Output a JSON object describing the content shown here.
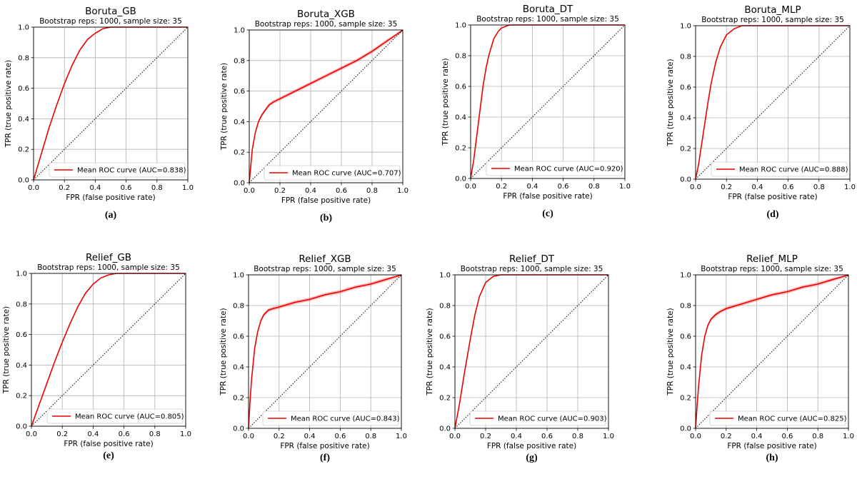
{
  "chart_data": [
    {
      "type": "line",
      "title": "Boruta_GB",
      "subtitle": "Bootstrap reps: 1000, sample size: 35",
      "xlabel": "FPR (false positive rate)",
      "ylabel": "TPR (true positive rate)",
      "xlim": [
        0,
        1
      ],
      "ylim": [
        0,
        1
      ],
      "xticks": [
        "0.0",
        "0.2",
        "0.4",
        "0.6",
        "0.8",
        "1.0"
      ],
      "yticks": [
        "0.0",
        "0.2",
        "0.4",
        "0.6",
        "0.8",
        "1.0"
      ],
      "grid": true,
      "legend_position": "lower-right",
      "series": [
        {
          "name": "Mean ROC curve (AUC=0.838)",
          "color": "#ee0000",
          "x": [
            0,
            0.05,
            0.1,
            0.15,
            0.2,
            0.25,
            0.3,
            0.35,
            0.4,
            0.45,
            0.5,
            0.6,
            0.8,
            1.0
          ],
          "y": [
            0,
            0.17,
            0.34,
            0.49,
            0.63,
            0.75,
            0.85,
            0.92,
            0.96,
            0.99,
            1,
            1,
            1,
            1
          ]
        },
        {
          "name": "",
          "color": "#000000",
          "dashed": true,
          "x": [
            0,
            1
          ],
          "y": [
            0,
            1
          ]
        }
      ],
      "caption": "(a)"
    },
    {
      "type": "line",
      "title": "Boruta_XGB",
      "subtitle": "Bootstrap reps: 1000, sample size: 35",
      "xlabel": "FPR (false positive rate)",
      "ylabel": "TPR (true positive rate)",
      "xlim": [
        0,
        1
      ],
      "ylim": [
        0,
        1
      ],
      "xticks": [
        "0.0",
        "0.2",
        "0.4",
        "0.6",
        "0.8",
        "1.0"
      ],
      "yticks": [
        "0.0",
        "0.2",
        "0.4",
        "0.6",
        "0.8",
        "1.0"
      ],
      "grid": true,
      "legend_position": "lower-right",
      "series": [
        {
          "name": "Mean ROC curve (AUC=0.707)",
          "color": "#ee0000",
          "band": 0.012,
          "x": [
            0,
            0.02,
            0.04,
            0.06,
            0.08,
            0.1,
            0.13,
            0.16,
            0.2,
            0.3,
            0.4,
            0.5,
            0.6,
            0.7,
            0.8,
            0.9,
            1.0
          ],
          "y": [
            0,
            0.22,
            0.33,
            0.4,
            0.44,
            0.47,
            0.51,
            0.53,
            0.55,
            0.6,
            0.65,
            0.7,
            0.75,
            0.8,
            0.86,
            0.93,
            1.0
          ]
        },
        {
          "name": "",
          "color": "#000000",
          "dashed": true,
          "x": [
            0,
            1
          ],
          "y": [
            0,
            1
          ]
        }
      ],
      "caption": "(b)"
    },
    {
      "type": "line",
      "title": "Boruta_DT",
      "subtitle": "Bootstrap reps: 1000, sample size: 35",
      "xlabel": "FPR (false positive rate)",
      "ylabel": "TPR (true positive rate)",
      "xlim": [
        0,
        1
      ],
      "ylim": [
        0,
        1
      ],
      "xticks": [
        "0.0",
        "0.2",
        "0.4",
        "0.6",
        "0.8",
        "1.0"
      ],
      "yticks": [
        "0.0",
        "0.2",
        "0.4",
        "0.6",
        "0.8",
        "1.0"
      ],
      "grid": true,
      "legend_position": "lower-right",
      "series": [
        {
          "name": "Mean ROC curve (AUC=0.920)",
          "color": "#ee0000",
          "x": [
            0,
            0.02,
            0.05,
            0.08,
            0.1,
            0.12,
            0.15,
            0.18,
            0.2,
            0.25,
            0.3,
            0.4,
            0.6,
            0.8,
            1.0
          ],
          "y": [
            0,
            0.12,
            0.36,
            0.6,
            0.72,
            0.81,
            0.91,
            0.96,
            0.98,
            1,
            1,
            1,
            1,
            1,
            1
          ]
        },
        {
          "name": "",
          "color": "#000000",
          "dashed": true,
          "x": [
            0,
            1
          ],
          "y": [
            0,
            1
          ]
        }
      ],
      "caption": "(c)"
    },
    {
      "type": "line",
      "title": "Boruta_MLP",
      "subtitle": "Bootstrap reps: 1000, sample size: 35",
      "xlabel": "FPR (false positive rate)",
      "ylabel": "TPR (true positive rate)",
      "xlim": [
        0,
        1
      ],
      "ylim": [
        0,
        1
      ],
      "xticks": [
        "0.0",
        "0.2",
        "0.4",
        "0.6",
        "0.8",
        "1.0"
      ],
      "yticks": [
        "0.0",
        "0.2",
        "0.4",
        "0.6",
        "0.8",
        "1.0"
      ],
      "grid": true,
      "legend_position": "lower-right",
      "series": [
        {
          "name": "Mean ROC curve (AUC=0.888)",
          "color": "#ee0000",
          "x": [
            0,
            0.02,
            0.05,
            0.08,
            0.1,
            0.13,
            0.16,
            0.2,
            0.25,
            0.3,
            0.35,
            0.4,
            0.6,
            0.8,
            1.0
          ],
          "y": [
            0,
            0.1,
            0.3,
            0.5,
            0.62,
            0.76,
            0.86,
            0.94,
            0.98,
            1,
            1,
            1,
            1,
            1,
            1
          ]
        },
        {
          "name": "",
          "color": "#000000",
          "dashed": true,
          "x": [
            0,
            1
          ],
          "y": [
            0,
            1
          ]
        }
      ],
      "caption": "(d)"
    },
    {
      "type": "line",
      "title": "Relief_GB",
      "subtitle": "Bootstrap reps: 1000, sample size: 35",
      "xlabel": "FPR (false positive rate)",
      "ylabel": "TPR (true positive rate)",
      "xlim": [
        0,
        1
      ],
      "ylim": [
        0,
        1
      ],
      "xticks": [
        "0.0",
        "0.2",
        "0.4",
        "0.6",
        "0.8",
        "1.0"
      ],
      "yticks": [
        "0.0",
        "0.2",
        "0.4",
        "0.6",
        "0.8",
        "1.0"
      ],
      "grid": true,
      "legend_position": "lower-right",
      "series": [
        {
          "name": "Mean ROC curve (AUC=0.805)",
          "color": "#ee0000",
          "x": [
            0,
            0.05,
            0.1,
            0.15,
            0.2,
            0.25,
            0.3,
            0.35,
            0.4,
            0.45,
            0.5,
            0.55,
            0.6,
            0.8,
            1.0
          ],
          "y": [
            0,
            0.14,
            0.28,
            0.42,
            0.55,
            0.67,
            0.78,
            0.87,
            0.93,
            0.97,
            0.99,
            1,
            1,
            1,
            1
          ]
        },
        {
          "name": "",
          "color": "#000000",
          "dashed": true,
          "x": [
            0,
            1
          ],
          "y": [
            0,
            1
          ]
        }
      ],
      "caption": "(e)"
    },
    {
      "type": "line",
      "title": "Relief_XGB",
      "subtitle": "Bootstrap reps: 1000, sample size: 35",
      "xlabel": "FPR (false positive rate)",
      "ylabel": "TPR (true positive rate)",
      "xlim": [
        0,
        1
      ],
      "ylim": [
        0,
        1
      ],
      "xticks": [
        "0.0",
        "0.2",
        "0.4",
        "0.6",
        "0.8",
        "1.0"
      ],
      "yticks": [
        "0.0",
        "0.2",
        "0.4",
        "0.6",
        "0.8",
        "1.0"
      ],
      "grid": true,
      "legend_position": "lower-right",
      "series": [
        {
          "name": "Mean ROC curve (AUC=0.843)",
          "color": "#ee0000",
          "band": 0.012,
          "x": [
            0,
            0.01,
            0.02,
            0.04,
            0.06,
            0.08,
            0.1,
            0.13,
            0.16,
            0.2,
            0.3,
            0.4,
            0.5,
            0.6,
            0.7,
            0.8,
            0.9,
            1.0
          ],
          "y": [
            0,
            0.18,
            0.32,
            0.52,
            0.63,
            0.7,
            0.74,
            0.77,
            0.78,
            0.79,
            0.82,
            0.84,
            0.87,
            0.89,
            0.92,
            0.94,
            0.97,
            1.0
          ]
        },
        {
          "name": "",
          "color": "#000000",
          "dashed": true,
          "x": [
            0,
            1
          ],
          "y": [
            0,
            1
          ]
        }
      ],
      "caption": "(f)"
    },
    {
      "type": "line",
      "title": "Relief_DT",
      "subtitle": "Bootstrap reps: 1000, sample size: 35",
      "xlabel": "FPR (false positive rate)",
      "ylabel": "TPR (true positive rate)",
      "xlim": [
        0,
        1
      ],
      "ylim": [
        0,
        1
      ],
      "xticks": [
        "0.0",
        "0.2",
        "0.4",
        "0.6",
        "0.8",
        "1.0"
      ],
      "yticks": [
        "0.0",
        "0.2",
        "0.4",
        "0.6",
        "0.8",
        "1.0"
      ],
      "grid": true,
      "legend_position": "lower-right",
      "series": [
        {
          "name": "Mean ROC curve (AUC=0.903)",
          "color": "#ee0000",
          "x": [
            0,
            0.03,
            0.06,
            0.1,
            0.13,
            0.16,
            0.2,
            0.25,
            0.3,
            0.35,
            0.4,
            0.6,
            0.8,
            1.0
          ],
          "y": [
            0,
            0.16,
            0.35,
            0.58,
            0.74,
            0.86,
            0.95,
            0.99,
            1,
            1,
            1,
            1,
            1,
            1
          ]
        },
        {
          "name": "",
          "color": "#000000",
          "dashed": true,
          "x": [
            0,
            1
          ],
          "y": [
            0,
            1
          ]
        }
      ],
      "caption": "(g)"
    },
    {
      "type": "line",
      "title": "Relief_MLP",
      "subtitle": "Bootstrap reps: 1000, sample size: 35",
      "xlabel": "FPR (false positive rate)",
      "ylabel": "TPR (true positive rate)",
      "xlim": [
        0,
        1
      ],
      "ylim": [
        0,
        1
      ],
      "xticks": [
        "0.0",
        "0.2",
        "0.4",
        "0.6",
        "0.8",
        "1.0"
      ],
      "yticks": [
        "0.0",
        "0.2",
        "0.4",
        "0.6",
        "0.8",
        "1.0"
      ],
      "grid": true,
      "legend_position": "lower-right",
      "series": [
        {
          "name": "Mean ROC curve (AUC=0.825)",
          "color": "#ee0000",
          "band": 0.012,
          "x": [
            0,
            0.01,
            0.02,
            0.04,
            0.06,
            0.08,
            0.1,
            0.13,
            0.16,
            0.2,
            0.3,
            0.4,
            0.5,
            0.6,
            0.7,
            0.8,
            0.9,
            1.0
          ],
          "y": [
            0,
            0.15,
            0.28,
            0.48,
            0.6,
            0.67,
            0.71,
            0.74,
            0.76,
            0.78,
            0.81,
            0.84,
            0.87,
            0.89,
            0.92,
            0.94,
            0.97,
            1.0
          ]
        },
        {
          "name": "",
          "color": "#000000",
          "dashed": true,
          "x": [
            0,
            1
          ],
          "y": [
            0,
            1
          ]
        }
      ],
      "caption": "(h)"
    }
  ]
}
